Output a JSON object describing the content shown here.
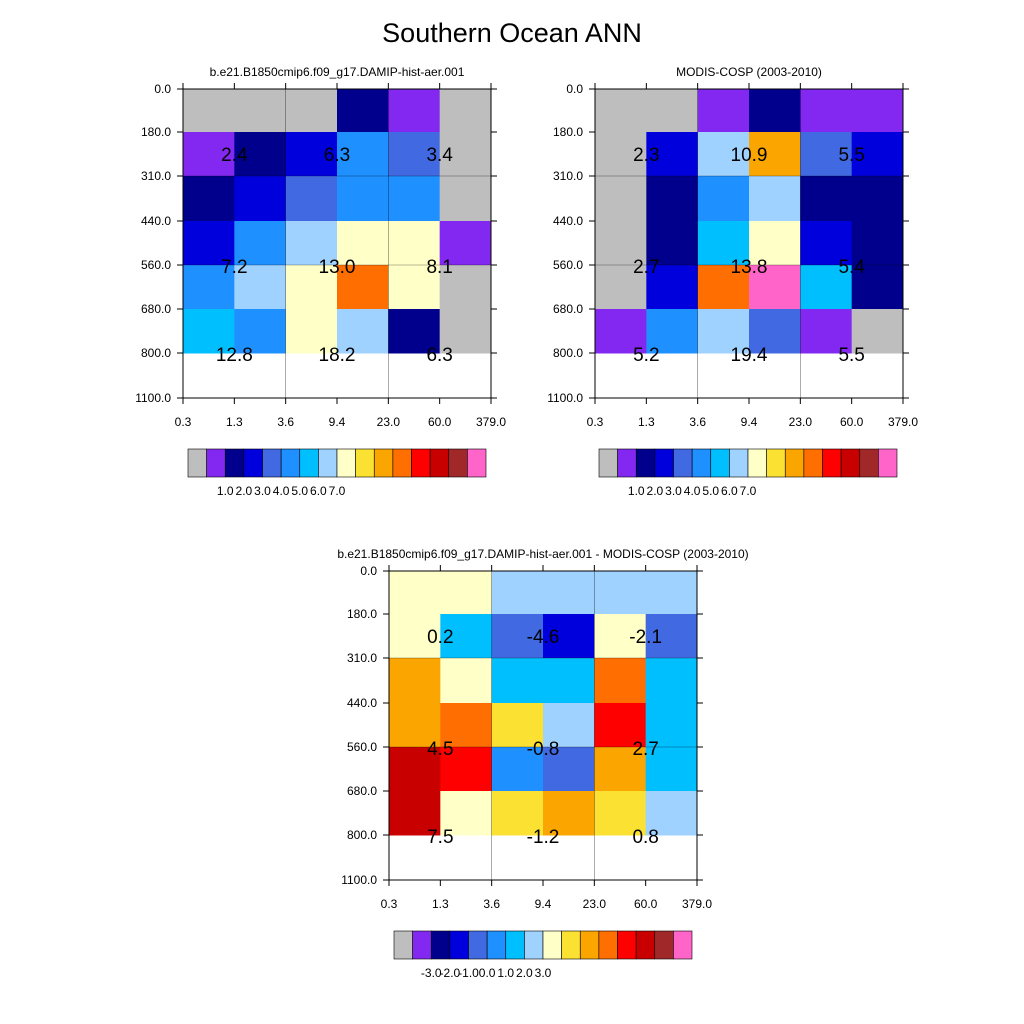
{
  "title": "Southern Ocean ANN",
  "chart_data": [
    {
      "type": "heatmap",
      "title": "b.e21.B1850cmip6.f09_g17.DAMIP-hist-aer.001",
      "x_ticks": [
        "0.3",
        "1.3",
        "3.6",
        "9.4",
        "23.0",
        "60.0",
        "379.0"
      ],
      "y_ticks": [
        "0.0",
        "180.0",
        "310.0",
        "440.0",
        "560.0",
        "680.0",
        "800.0",
        "1100.0"
      ],
      "cells": [
        [
          "gray",
          "gray",
          "gray",
          "navy",
          "purple",
          "gray"
        ],
        [
          "purple",
          "navy",
          "blue",
          "dodgerblue",
          "royalblue",
          "gray"
        ],
        [
          "navy",
          "blue",
          "royalblue",
          "dodgerblue",
          "dodgerblue",
          "gray"
        ],
        [
          "blue",
          "dodgerblue",
          "lightblue",
          "lightyellow",
          "lightyellow",
          "purple"
        ],
        [
          "dodgerblue",
          "lightblue",
          "lightyellow",
          "darkorange",
          "lightyellow",
          "gray"
        ],
        [
          "skyblue",
          "dodgerblue",
          "lightyellow",
          "lightblue",
          "navy",
          "gray"
        ]
      ],
      "annotations": [
        {
          "col": 0,
          "row": 0,
          "text": "2.4"
        },
        {
          "col": 1,
          "row": 0,
          "text": "6.3"
        },
        {
          "col": 2,
          "row": 0,
          "text": "3.4"
        },
        {
          "col": 0,
          "row": 1,
          "text": "7.2"
        },
        {
          "col": 1,
          "row": 1,
          "text": "13.0"
        },
        {
          "col": 2,
          "row": 1,
          "text": "8.1"
        },
        {
          "col": 0,
          "row": 2,
          "text": "12.8"
        },
        {
          "col": 1,
          "row": 2,
          "text": "18.2"
        },
        {
          "col": 2,
          "row": 2,
          "text": "6.3"
        }
      ]
    },
    {
      "type": "heatmap",
      "title": "MODIS-COSP (2003-2010)",
      "x_ticks": [
        "0.3",
        "1.3",
        "3.6",
        "9.4",
        "23.0",
        "60.0",
        "379.0"
      ],
      "y_ticks": [
        "0.0",
        "180.0",
        "310.0",
        "440.0",
        "560.0",
        "680.0",
        "800.0",
        "1100.0"
      ],
      "cells": [
        [
          "gray",
          "gray",
          "purple",
          "navy",
          "purple",
          "purple"
        ],
        [
          "gray",
          "blue",
          "lightblue",
          "orange",
          "royalblue",
          "blue"
        ],
        [
          "gray",
          "navy",
          "dodgerblue",
          "lightblue",
          "navy",
          "navy"
        ],
        [
          "gray",
          "navy",
          "skyblue",
          "lightyellow",
          "blue",
          "navy"
        ],
        [
          "gray",
          "blue",
          "darkorange",
          "hotpink",
          "skyblue",
          "navy"
        ],
        [
          "purple",
          "dodgerblue",
          "lightblue",
          "royalblue",
          "purple",
          "gray"
        ]
      ],
      "annotations": [
        {
          "col": 0,
          "row": 0,
          "text": "2.3"
        },
        {
          "col": 1,
          "row": 0,
          "text": "10.9"
        },
        {
          "col": 2,
          "row": 0,
          "text": "5.5"
        },
        {
          "col": 0,
          "row": 1,
          "text": "2.7"
        },
        {
          "col": 1,
          "row": 1,
          "text": "13.8"
        },
        {
          "col": 2,
          "row": 1,
          "text": "5.4"
        },
        {
          "col": 0,
          "row": 2,
          "text": "5.2"
        },
        {
          "col": 1,
          "row": 2,
          "text": "19.4"
        },
        {
          "col": 2,
          "row": 2,
          "text": "5.5"
        }
      ]
    },
    {
      "type": "heatmap",
      "title": "b.e21.B1850cmip6.f09_g17.DAMIP-hist-aer.001 - MODIS-COSP (2003-2010)",
      "x_ticks": [
        "0.3",
        "1.3",
        "3.6",
        "9.4",
        "23.0",
        "60.0",
        "379.0"
      ],
      "y_ticks": [
        "0.0",
        "180.0",
        "310.0",
        "440.0",
        "560.0",
        "680.0",
        "800.0",
        "1100.0"
      ],
      "cells": [
        [
          "lightyellow",
          "lightyellow",
          "lightblue",
          "lightblue",
          "lightblue",
          "lightblue"
        ],
        [
          "lightyellow",
          "skyblue",
          "royalblue",
          "blue",
          "lightyellow",
          "royalblue"
        ],
        [
          "orange",
          "lightyellow",
          "skyblue",
          "skyblue",
          "darkorange",
          "skyblue"
        ],
        [
          "orange",
          "darkorange",
          "gold",
          "lightblue",
          "red",
          "skyblue"
        ],
        [
          "darkred",
          "red",
          "dodgerblue",
          "royalblue",
          "orange",
          "skyblue"
        ],
        [
          "darkred",
          "lightyellow",
          "gold",
          "orange",
          "gold",
          "lightblue"
        ]
      ],
      "annotations": [
        {
          "col": 0,
          "row": 0,
          "text": "0.2"
        },
        {
          "col": 1,
          "row": 0,
          "text": "-4.6"
        },
        {
          "col": 2,
          "row": 0,
          "text": "-2.1"
        },
        {
          "col": 0,
          "row": 1,
          "text": "4.5"
        },
        {
          "col": 1,
          "row": 1,
          "text": "-0.8"
        },
        {
          "col": 2,
          "row": 1,
          "text": "2.7"
        },
        {
          "col": 0,
          "row": 2,
          "text": "7.5"
        },
        {
          "col": 1,
          "row": 2,
          "text": "-1.2"
        },
        {
          "col": 2,
          "row": 2,
          "text": "0.8"
        }
      ]
    }
  ],
  "colorbars": [
    {
      "labels": [
        "1.0",
        "2.0",
        "3.0",
        "4.0",
        "5.0",
        "6.0",
        "7.0"
      ]
    },
    {
      "labels": [
        "1.0",
        "2.0",
        "3.0",
        "4.0",
        "5.0",
        "6.0",
        "7.0"
      ]
    },
    {
      "labels": [
        "-3.0",
        "-2.0",
        "-1.0",
        "0.0",
        "1.0",
        "2.0",
        "3.0"
      ]
    }
  ],
  "colors": {
    "gray": "#bebebe",
    "purple": "#8228f0",
    "navy": "#00008c",
    "blue": "#0000dc",
    "royalblue": "#4169e1",
    "dodgerblue": "#1e90ff",
    "skyblue": "#00bfff",
    "lightblue": "#a0d2ff",
    "lightyellow": "#ffffc8",
    "gold": "#fae132",
    "orange": "#faa500",
    "darkorange": "#ff6e00",
    "red": "#ff0000",
    "darkred": "#c80000",
    "brown": "#a02828",
    "hotpink": "#ff64c8"
  },
  "colorbar_order": [
    "gray",
    "purple",
    "navy",
    "blue",
    "royalblue",
    "dodgerblue",
    "skyblue",
    "lightblue",
    "lightyellow",
    "gold",
    "orange",
    "darkorange",
    "red",
    "darkred",
    "brown",
    "hotpink"
  ]
}
